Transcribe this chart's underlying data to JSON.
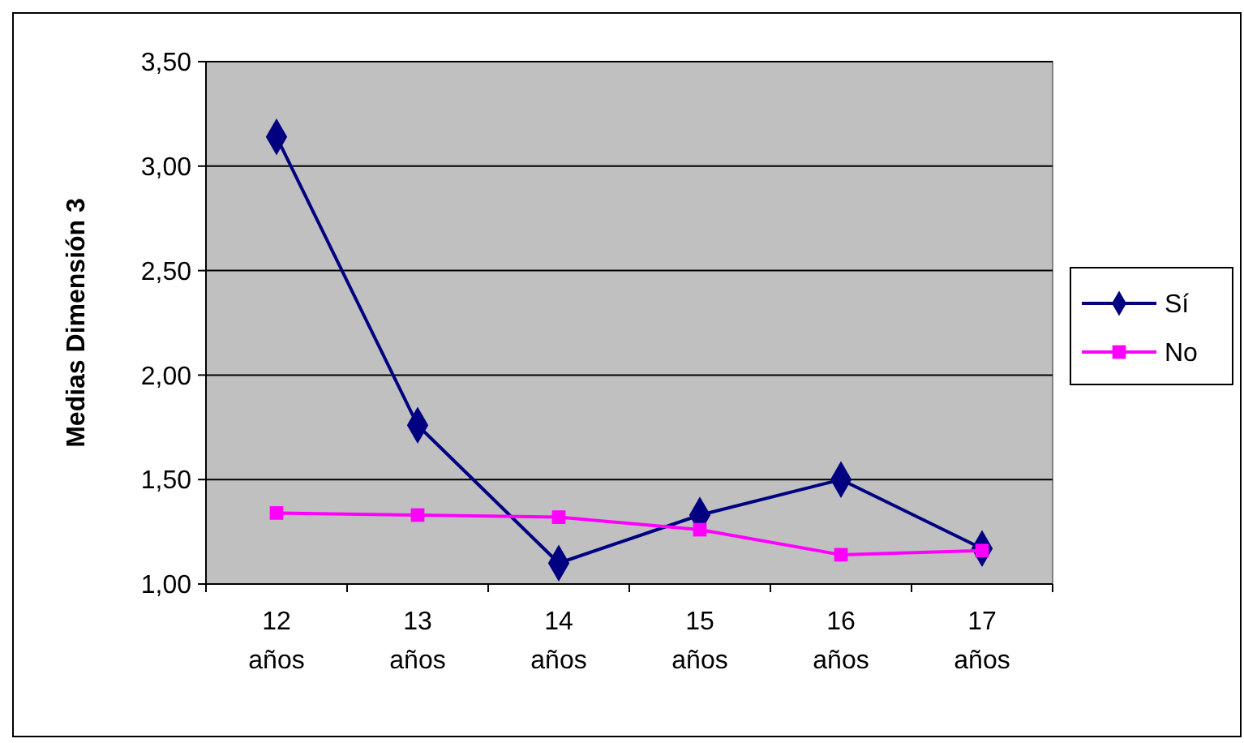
{
  "chart_data": {
    "type": "line",
    "ylabel": "Medias Dimensión 3",
    "categories": [
      "12 años",
      "13 años",
      "14 años",
      "15 años",
      "16 años",
      "17 años"
    ],
    "series": [
      {
        "name": "Sí",
        "color": "#000080",
        "marker": "diamond",
        "values": [
          3.14,
          1.76,
          1.1,
          1.33,
          1.5,
          1.17
        ]
      },
      {
        "name": "No",
        "color": "#ff00ff",
        "marker": "square",
        "values": [
          1.34,
          1.33,
          1.32,
          1.26,
          1.14,
          1.16
        ]
      }
    ],
    "ylim": [
      1,
      3.5
    ],
    "yticks": [
      {
        "value": 1,
        "label": "1,00"
      },
      {
        "value": 1.5,
        "label": "1,50"
      },
      {
        "value": 2,
        "label": "2,00"
      },
      {
        "value": 2.5,
        "label": "2,50"
      },
      {
        "value": 3,
        "label": "3,00"
      },
      {
        "value": 3.5,
        "label": "3,50"
      }
    ],
    "grid": "y",
    "legend": "right"
  }
}
